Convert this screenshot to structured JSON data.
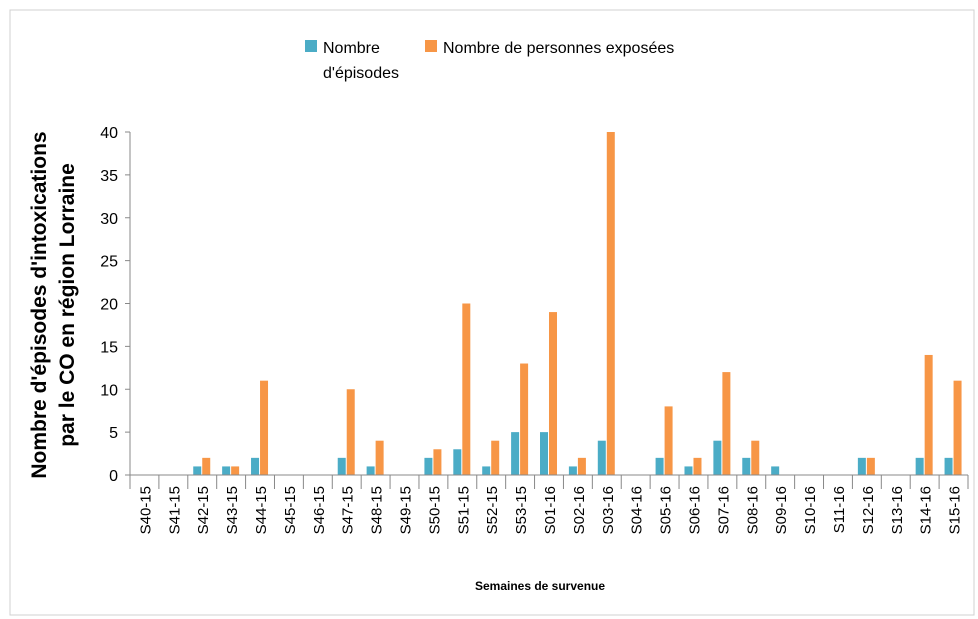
{
  "chart_data": {
    "type": "bar",
    "y_label": [
      "Nombre d'épisodes d'intoxications",
      "par le  CO  en région Lorraine"
    ],
    "x_label": "Semaines de survenue",
    "categories": [
      "S40-15",
      "S41-15",
      "S42-15",
      "S43-15",
      "S44-15",
      "S45-15",
      "S46-15",
      "S47-15",
      "S48-15",
      "S49-15",
      "S50-15",
      "S51-15",
      "S52-15",
      "S53-15",
      "S01-16",
      "S02-16",
      "S03-16",
      "S04-16",
      "S05-16",
      "S06-16",
      "S07-16",
      "S08-16",
      "S09-16",
      "S10-16",
      "S11-16",
      "S12-16",
      "S13-16",
      "S14-16",
      "S15-16"
    ],
    "series": [
      {
        "name": "Nombre d'épisodes",
        "color": "#4bacc6",
        "values": [
          0,
          0,
          1,
          1,
          2,
          0,
          0,
          2,
          1,
          0,
          2,
          3,
          1,
          5,
          5,
          1,
          4,
          0,
          2,
          1,
          4,
          2,
          1,
          0,
          0,
          2,
          0,
          2,
          2
        ]
      },
      {
        "name": "Nombre de personnes exposées",
        "color": "#f79646",
        "values": [
          0,
          0,
          2,
          1,
          11,
          0,
          0,
          10,
          4,
          0,
          3,
          20,
          4,
          13,
          19,
          2,
          40,
          0,
          8,
          2,
          12,
          4,
          0,
          0,
          0,
          2,
          0,
          14,
          11
        ]
      }
    ],
    "ylim": [
      0,
      40
    ],
    "yticks": [
      0,
      5,
      10,
      15,
      20,
      25,
      30,
      35,
      40
    ]
  }
}
